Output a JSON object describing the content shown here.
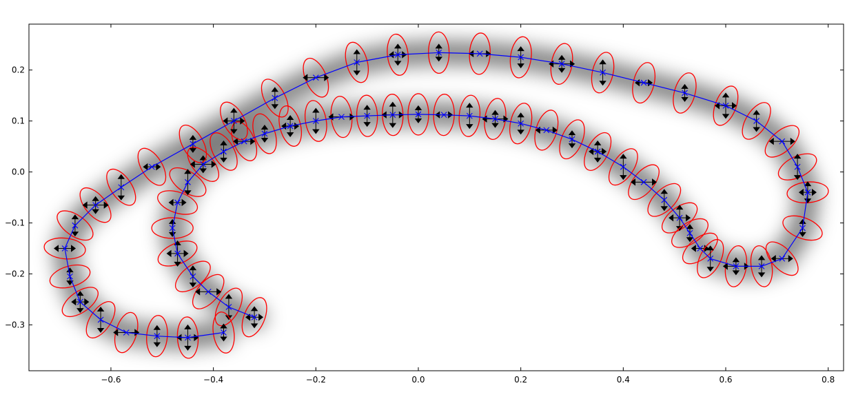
{
  "chart_data": {
    "type": "scatter",
    "title": "",
    "xlabel": "",
    "ylabel": "",
    "xlim": [
      -0.76,
      0.83
    ],
    "ylim": [
      -0.39,
      0.29
    ],
    "x_ticks": [
      -0.6,
      -0.4,
      -0.2,
      0.0,
      0.2,
      0.4,
      0.6,
      0.8
    ],
    "x_tick_labels": [
      "−0.6",
      "−0.4",
      "−0.2",
      "0.0",
      "0.2",
      "0.4",
      "0.6",
      "0.8"
    ],
    "y_ticks": [
      -0.3,
      -0.2,
      -0.1,
      0.0,
      0.1,
      0.2
    ],
    "y_tick_labels": [
      "−0.3",
      "−0.2",
      "−0.1",
      "0.0",
      "0.1",
      "0.2"
    ],
    "grid": false,
    "colors": {
      "trajectory": "#0000ff",
      "ellipse": "#ff0000",
      "arrow": "#000000",
      "density": "#000000"
    },
    "series": [
      {
        "x": [
          -0.32,
          -0.37,
          -0.41,
          -0.44,
          -0.47,
          -0.48,
          -0.47,
          -0.45,
          -0.42,
          -0.38,
          -0.34,
          -0.3,
          -0.25,
          -0.2,
          -0.15,
          -0.1,
          -0.05,
          0.0,
          0.05,
          0.1,
          0.15,
          0.2,
          0.25,
          0.3,
          0.35,
          0.4,
          0.44,
          0.48,
          0.51,
          0.53,
          0.55,
          0.57,
          0.62,
          0.67,
          0.71,
          0.75,
          0.76,
          0.74,
          0.71,
          0.66,
          0.6,
          0.52,
          0.44,
          0.36,
          0.28,
          0.2,
          0.12,
          0.04,
          -0.04,
          -0.12,
          -0.2,
          -0.28,
          -0.36,
          -0.44,
          -0.52,
          -0.58,
          -0.63,
          -0.67,
          -0.69,
          -0.68,
          -0.66,
          -0.62,
          -0.57,
          -0.51,
          -0.45,
          -0.38
        ],
        "y": [
          -0.285,
          -0.265,
          -0.235,
          -0.205,
          -0.16,
          -0.11,
          -0.06,
          -0.02,
          0.015,
          0.04,
          0.06,
          0.075,
          0.09,
          0.1,
          0.108,
          0.11,
          0.112,
          0.113,
          0.112,
          0.11,
          0.104,
          0.095,
          0.082,
          0.064,
          0.04,
          0.01,
          -0.02,
          -0.055,
          -0.09,
          -0.12,
          -0.15,
          -0.17,
          -0.185,
          -0.185,
          -0.17,
          -0.11,
          -0.04,
          0.01,
          0.06,
          0.1,
          0.13,
          0.155,
          0.175,
          0.195,
          0.212,
          0.225,
          0.232,
          0.234,
          0.23,
          0.215,
          0.185,
          0.145,
          0.1,
          0.055,
          0.01,
          -0.03,
          -0.065,
          -0.105,
          -0.15,
          -0.205,
          -0.255,
          -0.29,
          -0.315,
          -0.322,
          -0.325,
          -0.315
        ]
      }
    ]
  }
}
